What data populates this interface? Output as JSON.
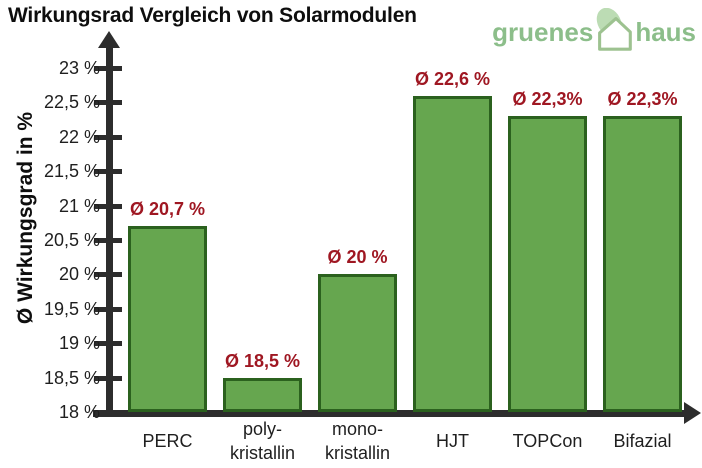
{
  "title": "Wirkungsrad Vergleich von Solarmodulen",
  "logo": {
    "word_left": "gruenes",
    "word_right": "haus",
    "icon": "house-with-leaf-icon"
  },
  "chart_data": {
    "type": "bar",
    "title": "Wirkungsrad Vergleich von Solarmodulen",
    "categories": [
      "PERC",
      "poly-kristallin",
      "mono-kristallin",
      "HJT",
      "TOPCon",
      "Bifazial"
    ],
    "category_lines": [
      [
        "PERC"
      ],
      [
        "poly-",
        "kristallin"
      ],
      [
        "mono-",
        "kristallin"
      ],
      [
        "HJT"
      ],
      [
        "TOPCon"
      ],
      [
        "Bifazial"
      ]
    ],
    "values": [
      20.7,
      18.5,
      20.0,
      22.6,
      22.3,
      22.3
    ],
    "value_labels": [
      "Ø 20,7 %",
      "Ø 18,5 %",
      "Ø 20 %",
      "Ø 22,6 %",
      "Ø 22,3%",
      "Ø 22,3%"
    ],
    "xlabel": "",
    "ylabel": "Ø Wirkungsgrad in %",
    "ylim": [
      18,
      23
    ],
    "ytick_step": 0.5,
    "ytick_labels": [
      "18 %",
      "18,5 %",
      "19 %",
      "19,5 %",
      "20 %",
      "20,5 %",
      "21 %",
      "21,5 %",
      "22 %",
      "22,5 %",
      "23 %"
    ],
    "grid": false,
    "legend": null
  },
  "colors": {
    "bar_fill": "#66a64f",
    "bar_border": "#2b611e",
    "value_label_red": "#9f1722",
    "axis": "#2d2d2d",
    "logo_text_green": "#8cbe8a",
    "leaf_light_green": "#bcdcb4",
    "house_outline_green": "#9dc290",
    "background": "#ffffff"
  }
}
